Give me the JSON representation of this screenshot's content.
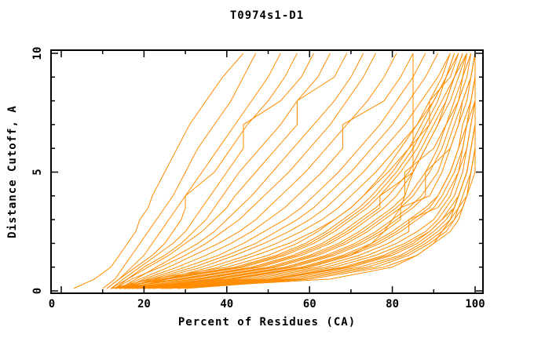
{
  "title": "T0974s1-D1",
  "colors": {
    "curve": "#ff8c00",
    "axis": "#000000",
    "background": "#ffffff",
    "text": "#000000"
  },
  "chart_data": {
    "type": "line",
    "title": "T0974s1-D1",
    "xlabel": "Percent of Residues (CA)",
    "ylabel": "Distance Cutoff, A",
    "xlim": [
      0,
      102
    ],
    "ylim": [
      0,
      10.2
    ],
    "x_major_ticks": [
      0,
      20,
      40,
      60,
      80,
      100
    ],
    "x_minor_step": 10,
    "y_major_ticks": [
      0,
      5,
      10
    ],
    "y_minor_step": 1,
    "grid": false,
    "legend": "none",
    "series_color": "#ff8c00",
    "cutoffs": [
      0.1,
      0.5,
      1,
      1.5,
      2,
      2.5,
      3,
      3.5,
      4,
      5,
      6,
      7,
      8,
      9,
      10
    ],
    "series": [
      [
        3,
        8,
        12,
        14,
        16,
        18,
        19,
        21,
        22,
        25,
        28,
        31,
        35,
        39,
        44
      ],
      [
        10,
        13,
        15,
        17,
        19,
        21,
        23,
        25,
        27,
        30,
        33,
        37,
        41,
        44,
        47
      ],
      [
        11,
        14,
        17,
        20,
        22,
        24,
        26,
        28,
        30,
        34,
        38,
        42,
        46,
        50,
        53
      ],
      [
        11,
        14,
        18,
        22,
        25,
        27,
        29,
        30,
        30,
        37,
        41,
        45,
        50,
        54,
        57
      ],
      [
        12,
        15,
        19,
        23,
        27,
        30,
        32,
        34,
        36,
        40,
        44,
        44,
        53,
        58,
        61
      ],
      [
        13,
        16,
        20,
        25,
        29,
        32,
        35,
        37,
        39,
        43,
        48,
        53,
        57,
        62,
        65
      ],
      [
        12,
        16,
        21,
        26,
        30,
        34,
        37,
        40,
        42,
        47,
        52,
        57,
        57,
        66,
        69
      ],
      [
        14,
        18,
        23,
        28,
        33,
        37,
        40,
        43,
        46,
        51,
        56,
        61,
        66,
        70,
        73
      ],
      [
        13,
        17,
        24,
        30,
        35,
        39,
        43,
        46,
        49,
        55,
        60,
        65,
        69,
        73,
        76
      ],
      [
        14,
        19,
        26,
        32,
        38,
        43,
        47,
        50,
        53,
        59,
        64,
        69,
        74,
        78,
        81
      ],
      [
        15,
        20,
        28,
        35,
        41,
        46,
        50,
        54,
        57,
        63,
        68,
        68,
        78,
        82,
        85
      ],
      [
        14,
        21,
        30,
        38,
        44,
        49,
        54,
        58,
        61,
        67,
        72,
        77,
        81,
        85,
        88
      ],
      [
        16,
        22,
        32,
        40,
        47,
        52,
        57,
        61,
        64,
        70,
        75,
        80,
        84,
        88,
        91
      ],
      [
        15,
        23,
        34,
        42,
        49,
        55,
        60,
        64,
        67,
        73,
        78,
        83,
        87,
        91,
        94
      ],
      [
        15,
        40,
        60,
        70,
        75,
        78,
        80,
        82,
        83,
        85,
        85,
        85,
        85,
        85,
        85
      ],
      [
        17,
        25,
        36,
        45,
        52,
        58,
        63,
        67,
        70,
        76,
        81,
        86,
        90,
        93,
        96
      ],
      [
        16,
        26,
        38,
        47,
        55,
        61,
        66,
        70,
        73,
        79,
        84,
        89,
        92,
        95,
        98
      ],
      [
        12,
        22,
        40,
        50,
        57,
        62,
        66,
        70,
        73,
        78,
        82,
        86,
        89,
        92,
        94
      ],
      [
        13,
        24,
        42,
        52,
        59,
        64,
        68,
        72,
        75,
        80,
        84,
        87,
        90,
        93,
        95
      ],
      [
        12,
        26,
        44,
        54,
        61,
        66,
        70,
        74,
        77,
        82,
        86,
        89,
        89,
        94,
        96
      ],
      [
        14,
        28,
        46,
        56,
        63,
        68,
        72,
        76,
        79,
        84,
        87,
        90,
        93,
        95,
        97
      ],
      [
        13,
        30,
        48,
        58,
        65,
        70,
        74,
        78,
        81,
        85,
        88,
        91,
        94,
        96,
        98
      ],
      [
        15,
        32,
        50,
        60,
        67,
        72,
        76,
        80,
        83,
        83,
        90,
        93,
        95,
        97,
        98
      ],
      [
        14,
        34,
        52,
        62,
        69,
        74,
        78,
        82,
        85,
        89,
        92,
        94,
        96,
        98,
        99
      ],
      [
        16,
        36,
        54,
        64,
        71,
        76,
        80,
        84,
        87,
        91,
        93,
        95,
        97,
        99,
        100
      ],
      [
        15,
        38,
        56,
        66,
        73,
        78,
        82,
        82,
        89,
        92,
        94,
        96,
        98,
        99,
        100
      ],
      [
        17,
        40,
        58,
        68,
        75,
        80,
        84,
        88,
        91,
        94,
        96,
        97,
        99,
        100,
        100
      ],
      [
        16,
        42,
        60,
        70,
        77,
        82,
        86,
        90,
        92,
        95,
        97,
        98,
        99,
        100,
        100
      ],
      [
        18,
        44,
        62,
        72,
        79,
        84,
        84,
        91,
        93,
        96,
        97,
        98,
        100,
        100,
        100
      ],
      [
        17,
        46,
        64,
        74,
        81,
        86,
        90,
        92,
        94,
        96,
        98,
        99,
        100,
        100,
        100
      ],
      [
        19,
        48,
        66,
        76,
        83,
        88,
        91,
        93,
        95,
        97,
        98,
        99,
        100,
        100,
        100
      ],
      [
        20,
        50,
        68,
        78,
        84,
        89,
        92,
        94,
        96,
        98,
        99,
        100,
        100,
        100,
        100
      ],
      [
        22,
        52,
        70,
        80,
        86,
        90,
        93,
        95,
        96,
        98,
        99,
        100,
        100,
        100,
        100
      ],
      [
        24,
        54,
        72,
        82,
        87,
        91,
        94,
        96,
        97,
        99,
        100,
        100,
        100,
        100,
        100
      ],
      [
        26,
        56,
        74,
        83,
        88,
        92,
        95,
        96,
        98,
        99,
        100,
        100,
        100,
        100,
        100
      ],
      [
        28,
        58,
        76,
        84,
        89,
        93,
        95,
        97,
        98,
        99,
        100,
        100,
        100,
        100,
        100
      ],
      [
        30,
        60,
        78,
        86,
        90,
        94,
        96,
        97,
        98,
        100,
        100,
        100,
        100,
        100,
        100
      ],
      [
        13,
        25,
        43,
        53,
        60,
        65,
        69,
        73,
        76,
        81,
        85,
        88,
        91,
        93,
        95
      ],
      [
        14,
        29,
        47,
        57,
        64,
        69,
        73,
        77,
        77,
        85,
        88,
        91,
        93,
        95,
        97
      ],
      [
        15,
        33,
        51,
        61,
        68,
        73,
        77,
        81,
        84,
        88,
        91,
        93,
        96,
        97,
        99
      ],
      [
        16,
        37,
        55,
        65,
        72,
        77,
        81,
        85,
        88,
        88,
        94,
        96,
        97,
        99,
        100
      ],
      [
        18,
        41,
        59,
        69,
        76,
        81,
        85,
        89,
        91,
        94,
        96,
        98,
        99,
        100,
        100
      ],
      [
        21,
        51,
        69,
        79,
        85,
        89,
        92,
        95,
        96,
        98,
        99,
        100,
        100,
        100,
        100
      ],
      [
        25,
        65,
        80,
        86,
        90,
        92,
        94,
        95,
        96,
        98,
        99,
        100,
        100,
        100,
        100
      ]
    ]
  }
}
